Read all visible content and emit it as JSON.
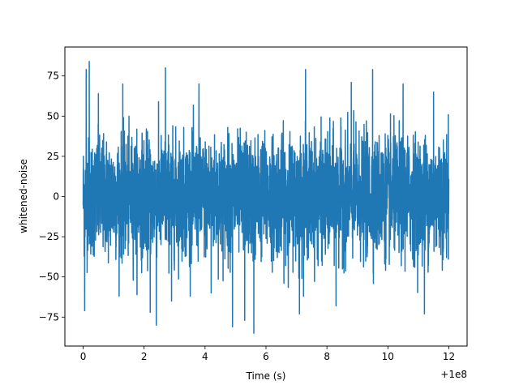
{
  "chart_data": {
    "type": "line",
    "xlabel": "Time (s)",
    "ylabel": "whitened-noise",
    "x_offset_label": "+1e8",
    "xlim": [
      -0.6,
      12.6
    ],
    "ylim": [
      -93,
      93
    ],
    "x_ticks": [
      0,
      2,
      4,
      6,
      8,
      10,
      12
    ],
    "x_tick_labels": [
      "0",
      "2",
      "4",
      "6",
      "8",
      "10",
      "12"
    ],
    "y_ticks": [
      -75,
      -50,
      -25,
      0,
      25,
      50,
      75
    ],
    "y_tick_labels": [
      "−75",
      "−50",
      "−25",
      "0",
      "25",
      "50",
      "75"
    ],
    "grid": false,
    "legend": "none",
    "series": [
      {
        "color": "#1f77b4",
        "x_range": [
          0,
          12
        ],
        "sigma": 18,
        "peaks": [
          {
            "x": 0.05,
            "y": -71
          },
          {
            "x": 0.1,
            "y": 79
          },
          {
            "x": 0.2,
            "y": 84
          },
          {
            "x": 0.5,
            "y": 64
          },
          {
            "x": 1.3,
            "y": 70
          },
          {
            "x": 2.2,
            "y": -72
          },
          {
            "x": 2.4,
            "y": -80
          },
          {
            "x": 2.7,
            "y": 80
          },
          {
            "x": 2.9,
            "y": -65
          },
          {
            "x": 3.8,
            "y": 70
          },
          {
            "x": 4.2,
            "y": -60
          },
          {
            "x": 4.9,
            "y": -81
          },
          {
            "x": 5.3,
            "y": -77
          },
          {
            "x": 5.6,
            "y": -85
          },
          {
            "x": 7.1,
            "y": -73
          },
          {
            "x": 7.3,
            "y": 79
          },
          {
            "x": 8.3,
            "y": -68
          },
          {
            "x": 8.8,
            "y": 71
          },
          {
            "x": 9.5,
            "y": 79
          },
          {
            "x": 10.5,
            "y": 70
          },
          {
            "x": 11.2,
            "y": -73
          },
          {
            "x": 11.5,
            "y": 65
          }
        ]
      }
    ]
  }
}
